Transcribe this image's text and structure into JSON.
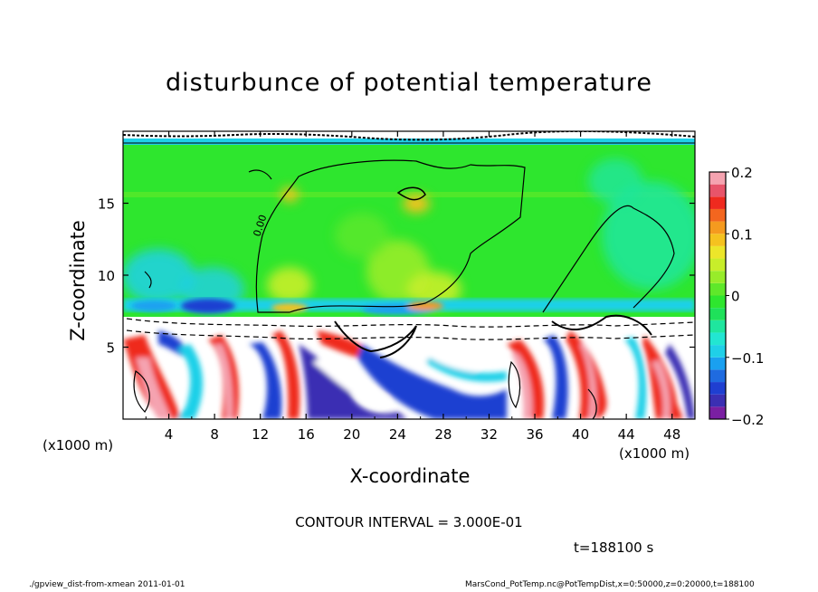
{
  "chart_data": {
    "type": "heatmap",
    "title": "disturbunce of potential temperature",
    "xlabel": "X-coordinate",
    "ylabel": "Z-coordinate",
    "x_unit_label": "(x1000 m)",
    "xlim": [
      0,
      50
    ],
    "ylim": [
      0,
      20
    ],
    "x_ticks": [
      4,
      8,
      12,
      16,
      20,
      24,
      28,
      32,
      36,
      40,
      44,
      48
    ],
    "y_ticks": [
      5,
      10,
      15
    ],
    "colorbar": {
      "range": [
        -0.2,
        0.2
      ],
      "tick_labels": [
        "0.2",
        "0.1",
        "0",
        "−0.1",
        "−0.2"
      ],
      "tick_values": [
        0.2,
        0.1,
        0,
        -0.1,
        -0.2
      ],
      "levels": [
        -0.2,
        -0.18,
        -0.16,
        -0.14,
        -0.12,
        -0.1,
        -0.08,
        -0.06,
        -0.04,
        -0.02,
        0,
        0.02,
        0.04,
        0.06,
        0.08,
        0.1,
        0.12,
        0.14,
        0.16,
        0.18,
        0.2
      ],
      "colors": [
        "#7a1fa2",
        "#3b2fb3",
        "#1f3fd1",
        "#1f6be0",
        "#1aa0f0",
        "#1fd0e8",
        "#22e6d2",
        "#1fe69e",
        "#1fe15a",
        "#2ee62e",
        "#5fe82a",
        "#98ec2a",
        "#c8ee2a",
        "#ece62a",
        "#f5c21f",
        "#f59a1f",
        "#f3661f",
        "#ef2a1f",
        "#e8546a",
        "#f5a3b0"
      ]
    },
    "contour_label": "0.00",
    "contour_interval": "CONTOUR INTERVAL = 3.000E-01",
    "annotations": {
      "time": "t=188100 s",
      "footer_left": "./gpview_dist-from-xmean  2011-01-01",
      "footer_right": "MarsCond_PotTemp.nc@PotTempDist,x=0:50000,z=0:20000,t=188100"
    }
  }
}
